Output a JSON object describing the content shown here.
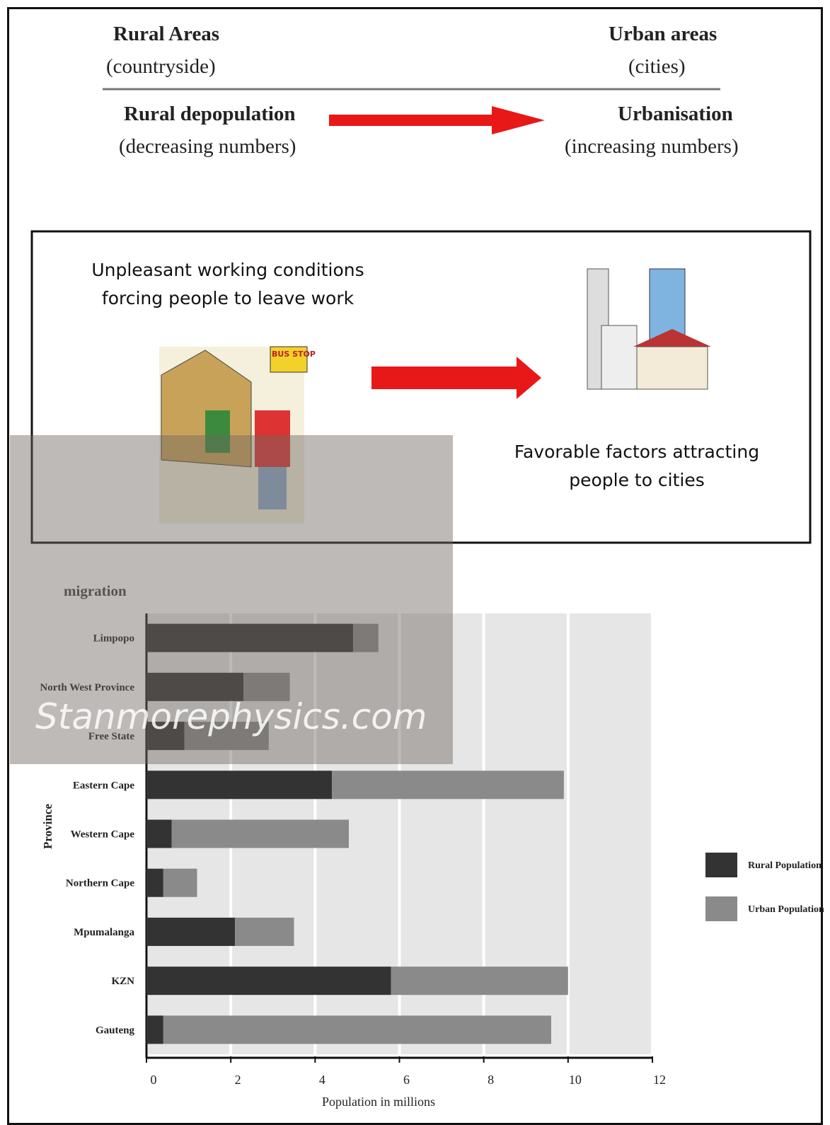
{
  "header": {
    "left_title": "Rural Areas",
    "left_subtitle": "(countryside)",
    "right_title": "Urban areas",
    "right_subtitle": "(cities)",
    "left_process": "Rural depopulation",
    "left_process_note": "(decreasing numbers)",
    "right_process": "Urbanisation",
    "right_process_note": "(increasing numbers)"
  },
  "push_pull": {
    "push_lines": [
      "Unpleasant working conditions",
      "forcing people to leave work"
    ],
    "sign": "BUS STOP",
    "pull_lines": [
      "Favorable factors attracting",
      "people to cities"
    ]
  },
  "watermark": "Stanmorephysics.com",
  "chart_data": {
    "type": "stacked-bar-horizontal",
    "title": "migration",
    "y_label": "Province",
    "x_label": "Population in millions",
    "categories": [
      "Limpopo",
      "North West Province",
      "Free State",
      "Eastern Cape",
      "Western Cape",
      "Northern Cape",
      "Mpumalanga",
      "KZN",
      "Gauteng"
    ],
    "series": [
      {
        "name": "Rural Population",
        "color": "#333333",
        "values": [
          4.9,
          2.3,
          0.9,
          4.4,
          0.6,
          0.4,
          2.1,
          5.8,
          0.4
        ]
      },
      {
        "name": "Urban Population",
        "color": "#8a8a8a",
        "values": [
          0.6,
          1.1,
          2.0,
          5.5,
          4.2,
          0.8,
          1.4,
          4.2,
          9.2
        ]
      }
    ],
    "xlim": [
      0,
      12
    ],
    "xticks": [
      0,
      2,
      4,
      6,
      8,
      10,
      12
    ],
    "grid": true
  }
}
